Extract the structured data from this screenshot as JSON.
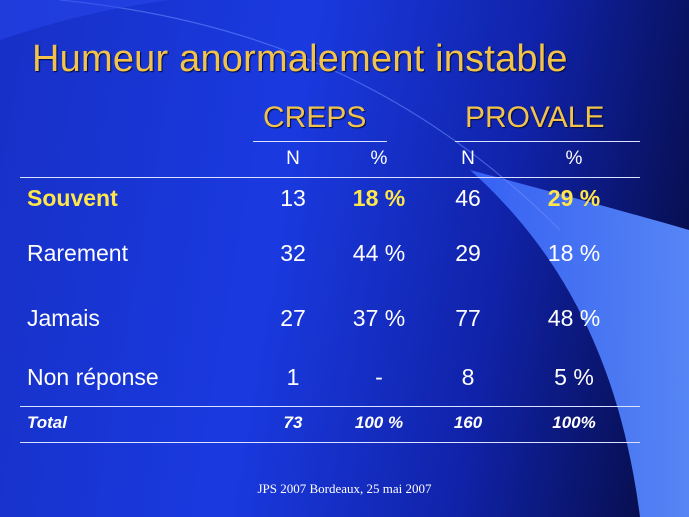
{
  "slide": {
    "title": "Humeur anormalement instable",
    "groups": [
      "CREPS",
      "PROVALE"
    ],
    "subheaders": [
      "N",
      "%",
      "N",
      "%"
    ],
    "rows": [
      {
        "label": "Souvent",
        "creps_n": "13",
        "creps_pct": "18 %",
        "provale_n": "46",
        "provale_pct": "29 %"
      },
      {
        "label": "Rarement",
        "creps_n": "32",
        "creps_pct": "44 %",
        "provale_n": "29",
        "provale_pct": "18 %"
      },
      {
        "label": "Jamais",
        "creps_n": "27",
        "creps_pct": "37 %",
        "provale_n": "77",
        "provale_pct": "48 %"
      },
      {
        "label": "Non réponse",
        "creps_n": "1",
        "creps_pct": "-",
        "provale_n": "8",
        "provale_pct": "5 %"
      }
    ],
    "total": {
      "label": "Total",
      "creps_n": "73",
      "creps_pct": "100 %",
      "provale_n": "160",
      "provale_pct": "100%"
    },
    "footer": "JPS 2007 Bordeaux, 25 mai 2007"
  },
  "colors": {
    "background": "#1730c6",
    "title": "#f2c34a",
    "highlight": "#ffe64a",
    "text": "#ffffff"
  }
}
